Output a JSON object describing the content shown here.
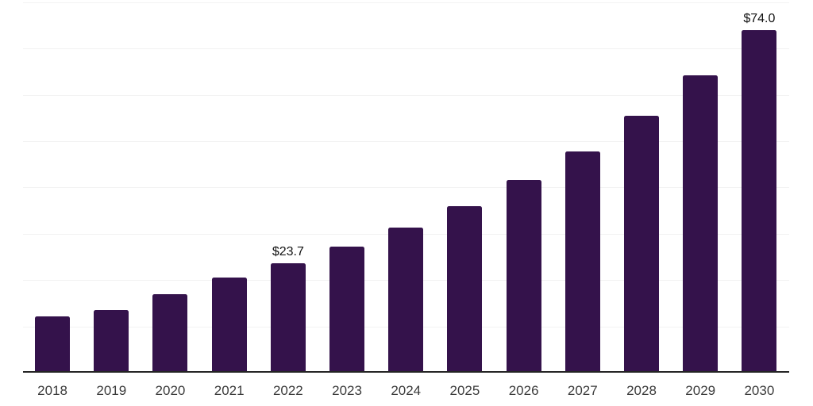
{
  "chart_data": {
    "type": "bar",
    "title": "",
    "xlabel": "",
    "ylabel": "",
    "categories": [
      "2018",
      "2019",
      "2020",
      "2021",
      "2022",
      "2023",
      "2024",
      "2025",
      "2026",
      "2027",
      "2028",
      "2029",
      "2030"
    ],
    "values": [
      12.1,
      13.5,
      17.0,
      20.6,
      23.7,
      27.2,
      31.3,
      36.0,
      41.6,
      47.8,
      55.5,
      64.3,
      74.0
    ],
    "data_labels": [
      {
        "category": "2022",
        "text": "$23.7"
      },
      {
        "category": "2030",
        "text": "$74.0"
      }
    ],
    "ylim": [
      0,
      80
    ],
    "grid_step": 10,
    "grid": "horizontal",
    "y_tick_labels_shown": false,
    "legend": "none",
    "colors": {
      "bar": "#34124b",
      "grid": "#f2f2f2",
      "axis": "#242424",
      "tick_label": "#3b3b3b",
      "value_label": "#121212",
      "background": "#ffffff"
    }
  }
}
